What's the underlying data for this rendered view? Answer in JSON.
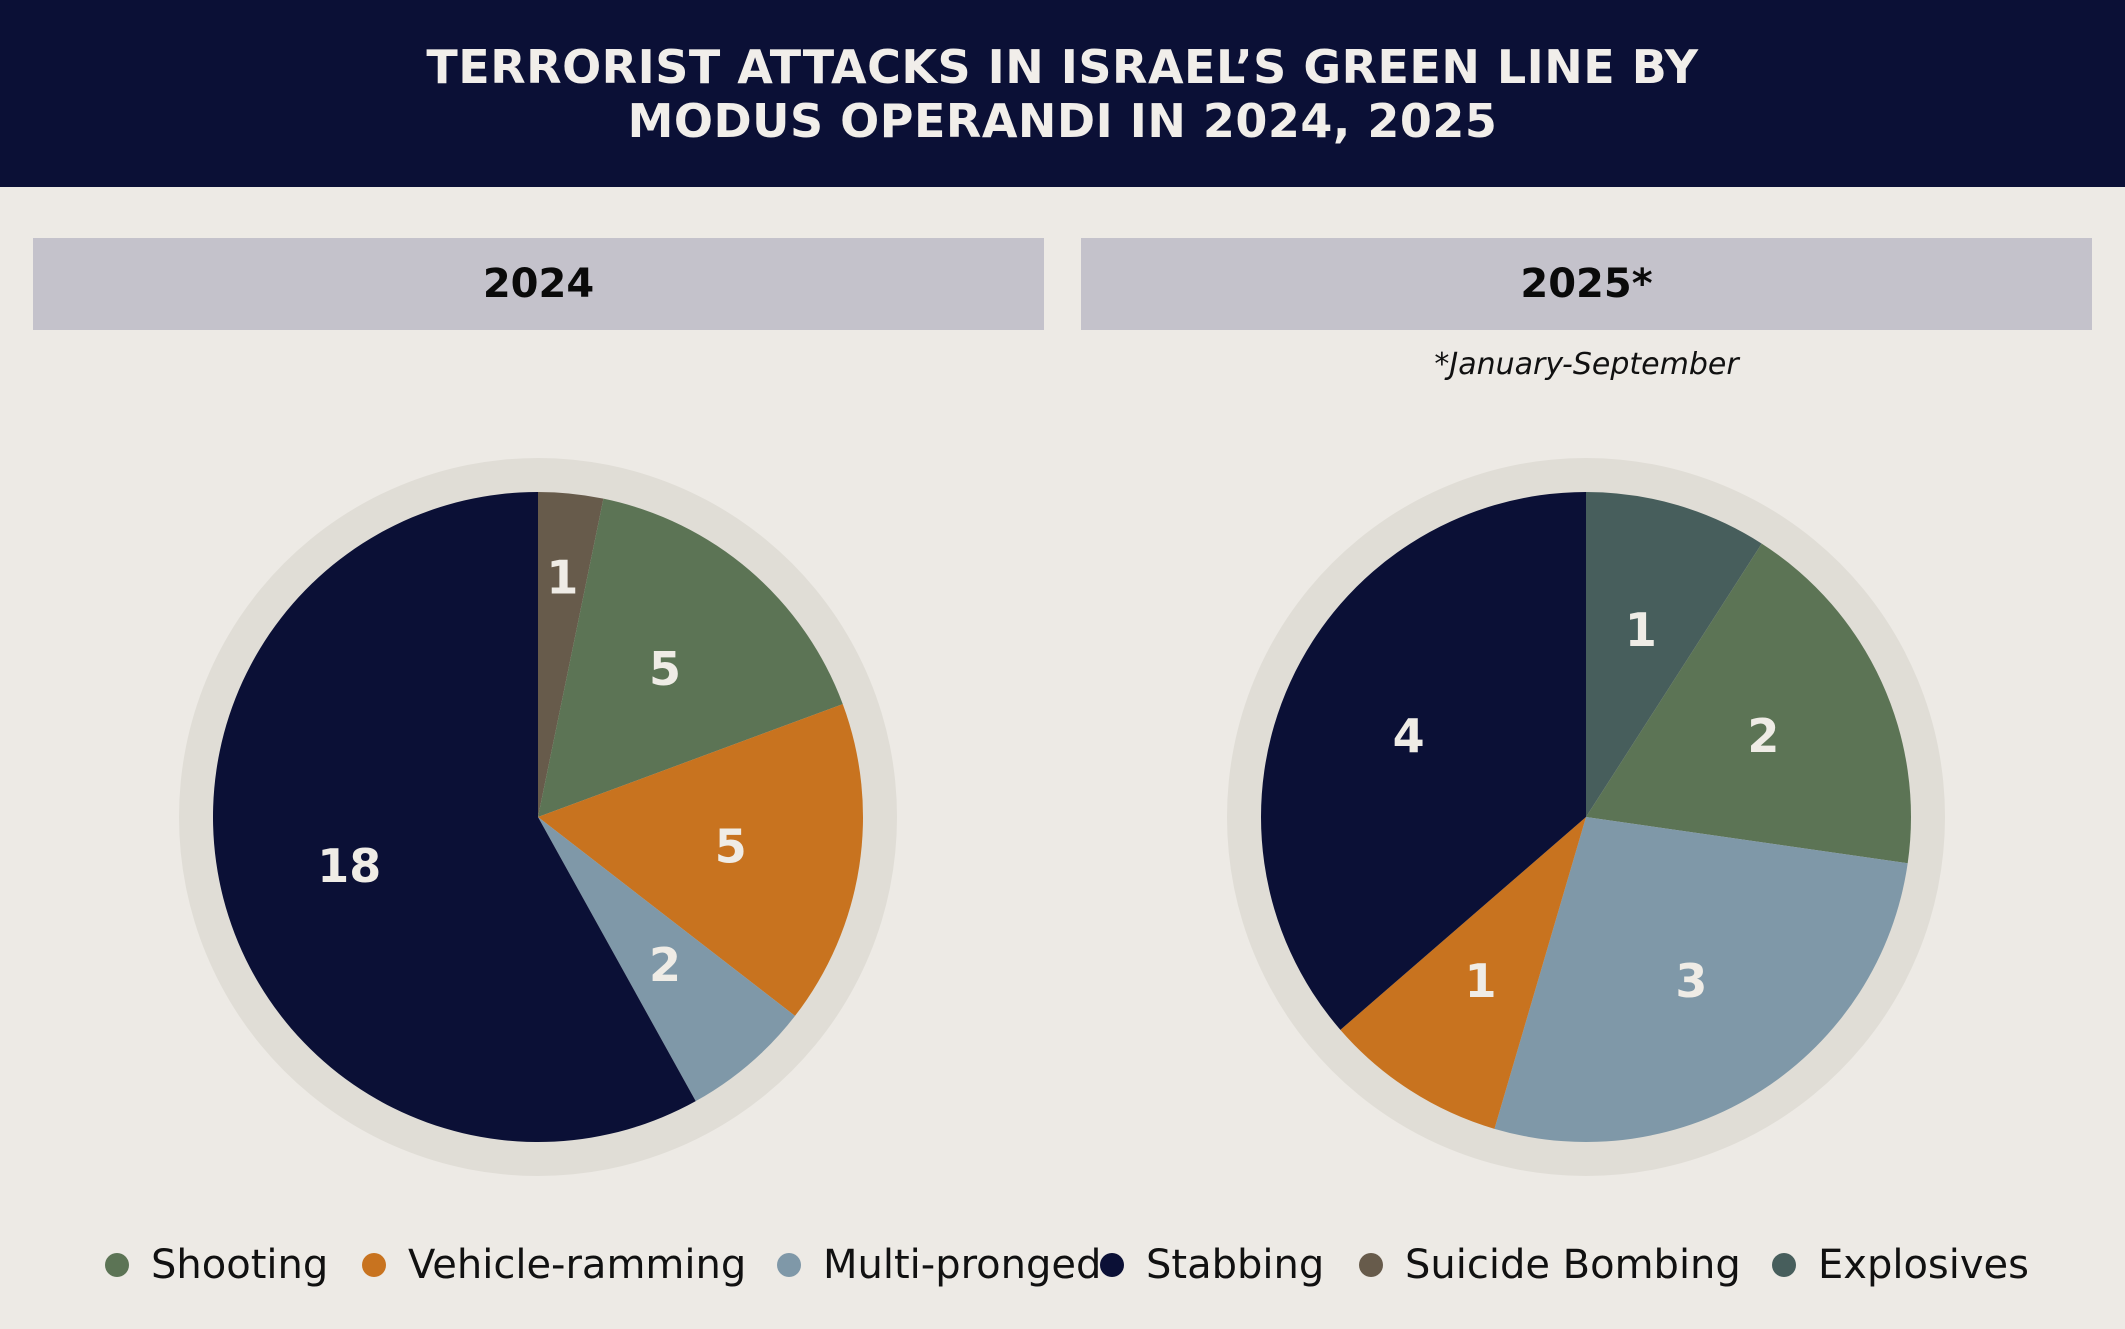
{
  "header": {
    "title_line1": "TERRORIST ATTACKS IN ISRAEL’S GREEN LINE BY",
    "title_line2": "MODUS OPERANDI IN 2024, 2025"
  },
  "panels": [
    {
      "label": "2024",
      "note": ""
    },
    {
      "label": "2025*",
      "note": "*January-September"
    }
  ],
  "colors": {
    "Shooting": "#5c7455",
    "Vehicle-ramming": "#c8731f",
    "Multi-pronged": "#7f98a8",
    "Stabbing": "#0b1036",
    "Suicide Bombing": "#675b4b",
    "Explosives": "#475e5c"
  },
  "legend": [
    {
      "label": "Shooting"
    },
    {
      "label": "Vehicle-ramming"
    },
    {
      "label": "Multi-pronged"
    },
    {
      "label": "Stabbing"
    },
    {
      "label": "Suicide Bombing"
    },
    {
      "label": "Explosives"
    }
  ],
  "chart_data": [
    {
      "type": "pie",
      "title": "2024",
      "start": "top, clockwise",
      "slices": [
        {
          "label": "Suicide Bombing",
          "value": 1
        },
        {
          "label": "Shooting",
          "value": 5
        },
        {
          "label": "Vehicle-ramming",
          "value": 5
        },
        {
          "label": "Multi-pronged",
          "value": 2
        },
        {
          "label": "Stabbing",
          "value": 18
        }
      ]
    },
    {
      "type": "pie",
      "title": "2025*",
      "subtitle": "*January-September",
      "start": "top, clockwise",
      "slices": [
        {
          "label": "Explosives",
          "value": 1
        },
        {
          "label": "Shooting",
          "value": 2
        },
        {
          "label": "Multi-pronged",
          "value": 3
        },
        {
          "label": "Vehicle-ramming",
          "value": 1
        },
        {
          "label": "Stabbing",
          "value": 4
        }
      ]
    }
  ]
}
